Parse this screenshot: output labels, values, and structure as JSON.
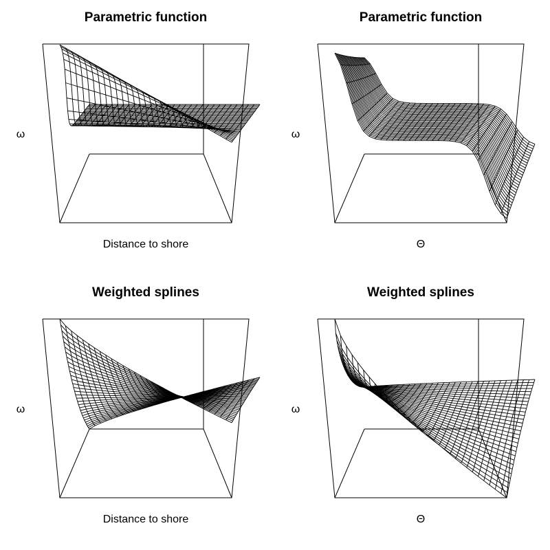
{
  "chart_data": [
    {
      "type": "surface",
      "title": "Parametric function",
      "xlabel": "Distance to shore",
      "zlabel": "ω",
      "surface": "sigmoid_front",
      "mesh": "grid"
    },
    {
      "type": "surface",
      "title": "Parametric function",
      "xlabel": "Θ",
      "zlabel": "ω",
      "surface": "double_sigmoid",
      "mesh": "grid"
    },
    {
      "type": "surface",
      "title": "Weighted splines",
      "xlabel": "Distance to shore",
      "zlabel": "ω",
      "surface": "fan_to_right",
      "mesh": "grid"
    },
    {
      "type": "surface",
      "title": "Weighted splines",
      "xlabel": "Θ",
      "zlabel": "ω",
      "surface": "fan_twist",
      "mesh": "grid"
    }
  ]
}
